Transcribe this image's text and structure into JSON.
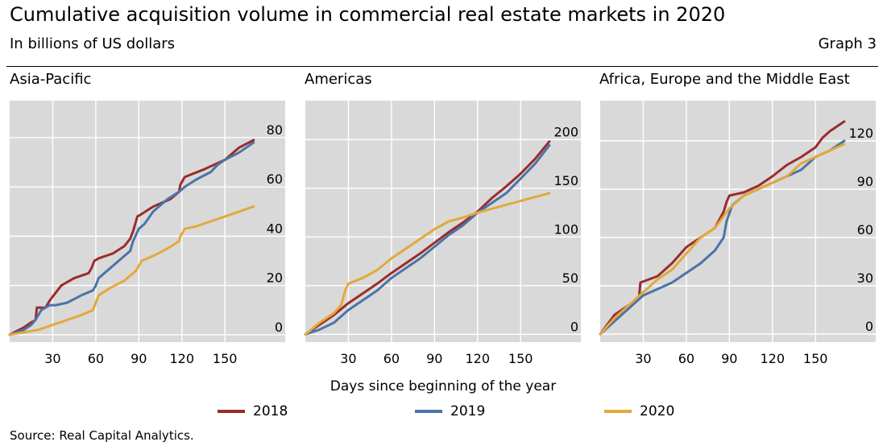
{
  "title": "Cumulative acquisition volume in commercial real estate markets in 2020",
  "subtitle": "In billions of US dollars",
  "graph_number": "Graph 3",
  "x_axis_caption": "Days since beginning of the year",
  "source": "Source: Real Capital Analytics.",
  "legend": [
    {
      "label": "2018",
      "color": "#9b2c2c"
    },
    {
      "label": "2019",
      "color": "#4a74a8"
    },
    {
      "label": "2020",
      "color": "#e2a93b"
    }
  ],
  "chart_data": [
    {
      "type": "line",
      "title": "Asia-Pacific",
      "xlabel": "Days since beginning of the year",
      "ylabel": "In billions of US dollars",
      "xlim": [
        0,
        192
      ],
      "ylim": [
        -3,
        95
      ],
      "xticks": [
        30,
        60,
        90,
        120,
        150
      ],
      "yticks": [
        0,
        20,
        40,
        60,
        80
      ],
      "grid": true,
      "series": [
        {
          "name": "2018",
          "color": "#9b2c2c",
          "x": [
            0,
            10,
            15,
            18,
            19,
            25,
            28,
            32,
            36,
            45,
            55,
            57,
            59,
            62,
            72,
            80,
            84,
            86,
            89,
            92,
            100,
            112,
            118,
            119,
            122,
            135,
            150,
            160,
            170
          ],
          "y": [
            0,
            3,
            5,
            6,
            11,
            11,
            14,
            17,
            20,
            23,
            25,
            27,
            30,
            31,
            33,
            36,
            39,
            42,
            48,
            49,
            52,
            55,
            58,
            61,
            64,
            67,
            71,
            76,
            79
          ]
        },
        {
          "name": "2019",
          "color": "#4a74a8",
          "x": [
            0,
            10,
            15,
            18,
            22,
            28,
            32,
            40,
            50,
            58,
            60,
            62,
            70,
            78,
            84,
            86,
            90,
            94,
            100,
            110,
            118,
            120,
            122,
            130,
            140,
            145,
            150,
            160,
            170
          ],
          "y": [
            0,
            2,
            4,
            6,
            10,
            12,
            12,
            13,
            16,
            18,
            20,
            23,
            27,
            31,
            34,
            38,
            43,
            45,
            50,
            55,
            58,
            59,
            60,
            63,
            66,
            69,
            71,
            74,
            78
          ]
        },
        {
          "name": "2020",
          "color": "#e2a93b",
          "x": [
            0,
            10,
            20,
            30,
            40,
            50,
            58,
            62,
            70,
            80,
            88,
            92,
            100,
            110,
            118,
            119,
            122,
            130,
            140,
            150,
            160,
            170
          ],
          "y": [
            0,
            1,
            2,
            4,
            6,
            8,
            10,
            16,
            19,
            22,
            26,
            30,
            32,
            35,
            38,
            40,
            43,
            44,
            46,
            48,
            50,
            52
          ]
        }
      ]
    },
    {
      "type": "line",
      "title": "Americas",
      "xlabel": "Days since beginning of the year",
      "ylabel": "In billions of US dollars",
      "xlim": [
        0,
        192
      ],
      "ylim": [
        -8,
        240
      ],
      "xticks": [
        30,
        60,
        90,
        120,
        150
      ],
      "yticks": [
        0,
        50,
        100,
        150,
        200
      ],
      "grid": true,
      "series": [
        {
          "name": "2018",
          "color": "#9b2c2c",
          "x": [
            0,
            10,
            20,
            30,
            40,
            50,
            60,
            70,
            80,
            90,
            100,
            110,
            120,
            130,
            140,
            150,
            160,
            170
          ],
          "y": [
            0,
            10,
            20,
            32,
            42,
            52,
            63,
            73,
            83,
            94,
            105,
            115,
            126,
            140,
            152,
            165,
            180,
            198
          ]
        },
        {
          "name": "2019",
          "color": "#4a74a8",
          "x": [
            0,
            10,
            20,
            30,
            40,
            50,
            60,
            70,
            80,
            90,
            100,
            110,
            120,
            130,
            140,
            150,
            160,
            170
          ],
          "y": [
            0,
            5,
            12,
            25,
            35,
            45,
            58,
            68,
            78,
            90,
            102,
            112,
            125,
            135,
            145,
            160,
            175,
            194
          ]
        },
        {
          "name": "2020",
          "color": "#e2a93b",
          "x": [
            0,
            10,
            20,
            25,
            28,
            30,
            40,
            50,
            60,
            70,
            80,
            90,
            100,
            110,
            120,
            130,
            140,
            150,
            160,
            170
          ],
          "y": [
            0,
            12,
            22,
            30,
            46,
            52,
            58,
            66,
            78,
            88,
            98,
            108,
            116,
            120,
            125,
            129,
            133,
            137,
            141,
            145
          ]
        }
      ]
    },
    {
      "type": "line",
      "title": "Africa, Europe and the Middle East",
      "xlabel": "Days since beginning of the year",
      "ylabel": "In billions of US dollars",
      "xlim": [
        0,
        192
      ],
      "ylim": [
        -5,
        145
      ],
      "xticks": [
        30,
        60,
        90,
        120,
        150
      ],
      "yticks": [
        0,
        30,
        60,
        90,
        120
      ],
      "grid": true,
      "series": [
        {
          "name": "2018",
          "color": "#9b2c2c",
          "x": [
            0,
            10,
            20,
            27,
            28,
            40,
            50,
            60,
            70,
            80,
            86,
            88,
            90,
            100,
            110,
            120,
            130,
            140,
            150,
            155,
            160,
            170
          ],
          "y": [
            0,
            12,
            18,
            22,
            32,
            36,
            44,
            54,
            60,
            66,
            76,
            82,
            86,
            88,
            92,
            98,
            105,
            110,
            116,
            122,
            126,
            132
          ]
        },
        {
          "name": "2019",
          "color": "#4a74a8",
          "x": [
            0,
            10,
            20,
            30,
            40,
            50,
            60,
            70,
            80,
            86,
            88,
            92,
            100,
            110,
            120,
            130,
            140,
            150,
            160,
            170
          ],
          "y": [
            0,
            8,
            16,
            24,
            28,
            32,
            38,
            44,
            52,
            60,
            70,
            80,
            86,
            90,
            94,
            98,
            102,
            110,
            114,
            120
          ]
        },
        {
          "name": "2020",
          "color": "#e2a93b",
          "x": [
            0,
            10,
            20,
            30,
            40,
            50,
            60,
            70,
            80,
            90,
            100,
            110,
            120,
            130,
            135,
            140,
            150,
            160,
            170
          ],
          "y": [
            0,
            10,
            18,
            26,
            34,
            40,
            50,
            60,
            66,
            78,
            86,
            90,
            94,
            98,
            102,
            106,
            110,
            114,
            118
          ]
        }
      ]
    }
  ]
}
